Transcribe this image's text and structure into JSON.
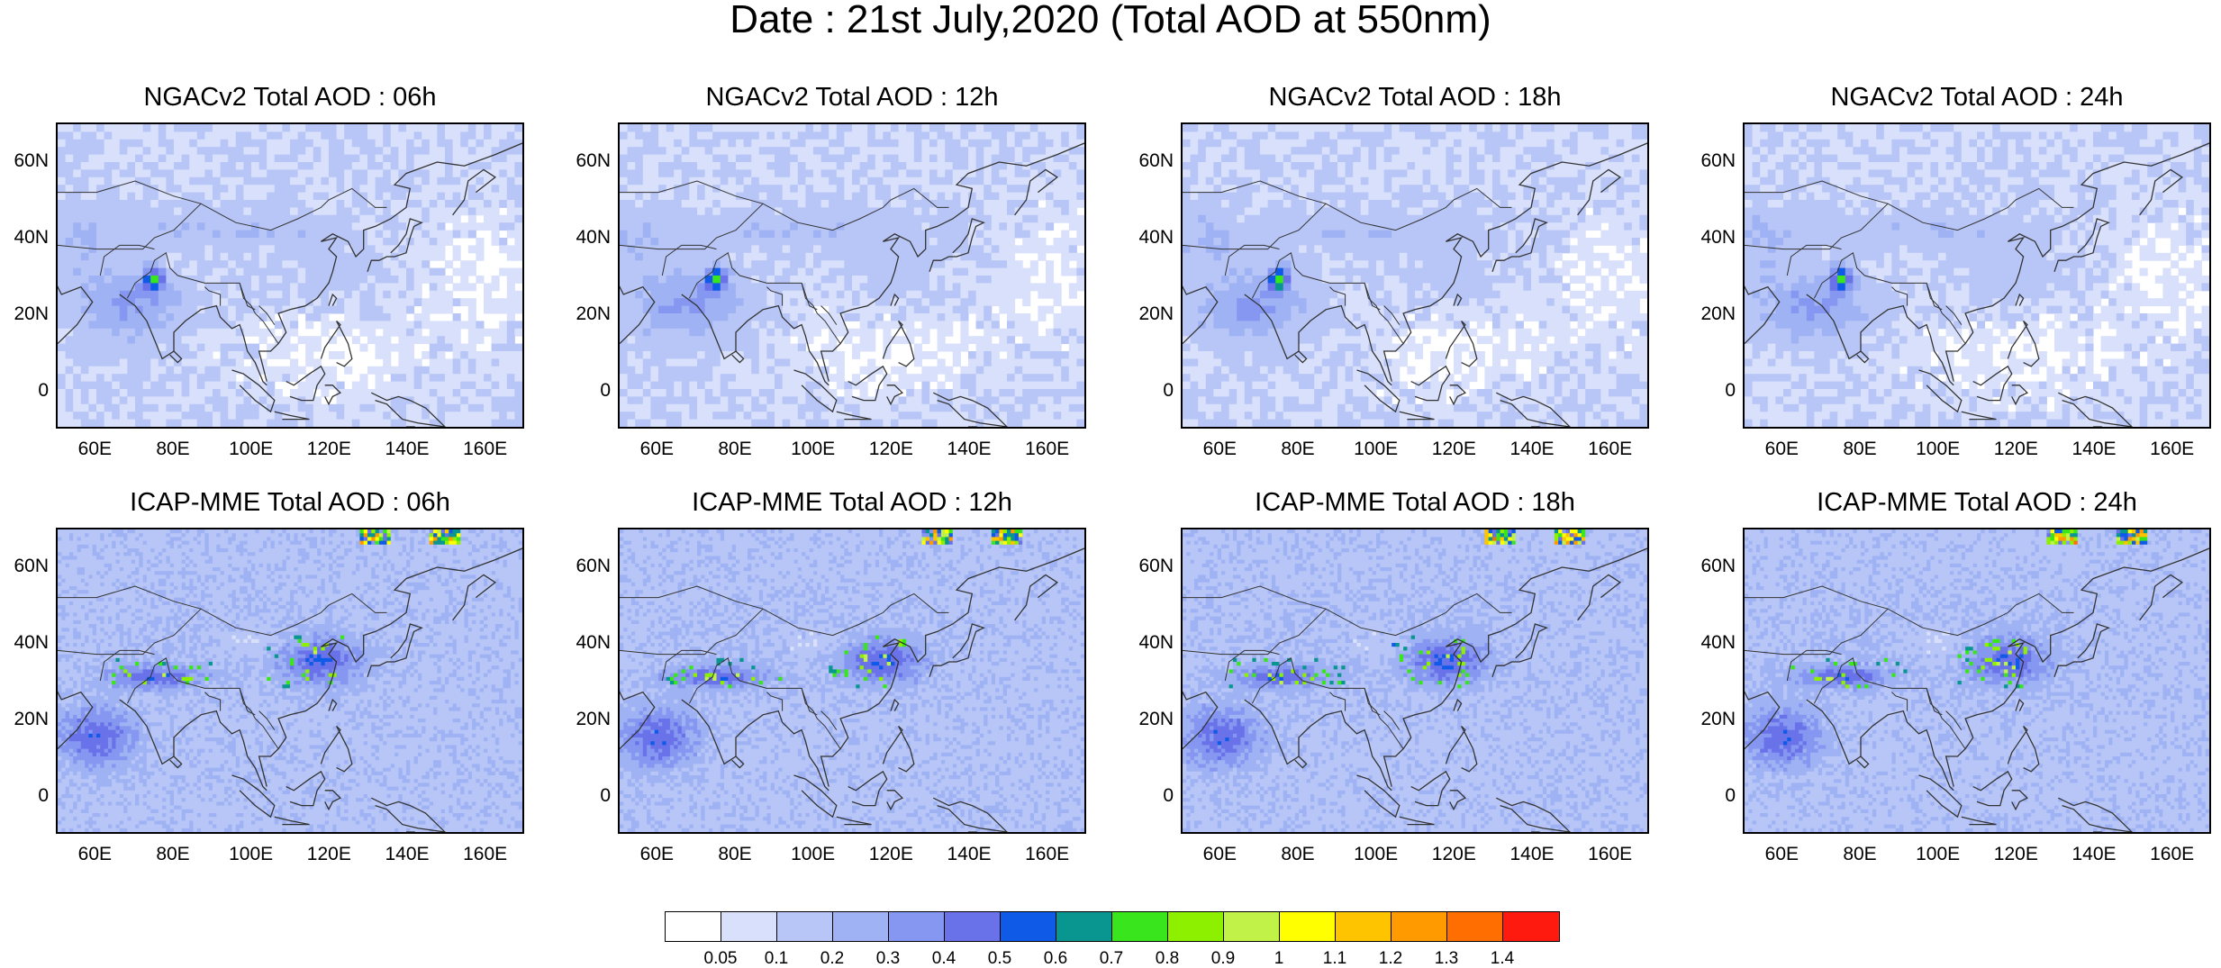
{
  "title": "Date : 21st July,2020 (Total AOD at 550nm)",
  "panels": [
    {
      "title": "NGACv2 Total AOD : 06h"
    },
    {
      "title": "NGACv2 Total AOD : 12h"
    },
    {
      "title": "NGACv2 Total AOD : 18h"
    },
    {
      "title": "NGACv2 Total AOD : 24h"
    },
    {
      "title": "ICAP-MME Total AOD : 06h"
    },
    {
      "title": "ICAP-MME Total AOD : 12h"
    },
    {
      "title": "ICAP-MME Total AOD : 18h"
    },
    {
      "title": "ICAP-MME Total AOD : 24h"
    }
  ],
  "lat_labels": [
    "60N",
    "40N",
    "20N",
    "0"
  ],
  "lon_labels": [
    "60E",
    "80E",
    "100E",
    "120E",
    "140E",
    "160E"
  ],
  "colorbar": {
    "labels": [
      "0.05",
      "0.1",
      "0.2",
      "0.3",
      "0.4",
      "0.5",
      "0.6",
      "0.7",
      "0.8",
      "0.9",
      "1",
      "1.1",
      "1.2",
      "1.3",
      "1.4"
    ],
    "colors": [
      "#ffffff",
      "#d8e0fb",
      "#b8c6f7",
      "#9fb2f3",
      "#8597f0",
      "#6a72ea",
      "#0f5be8",
      "#0a9690",
      "#39e51c",
      "#8cf000",
      "#c0f247",
      "#ffff00",
      "#ffc400",
      "#ff9a00",
      "#ff6e00",
      "#ff1a10"
    ]
  }
}
